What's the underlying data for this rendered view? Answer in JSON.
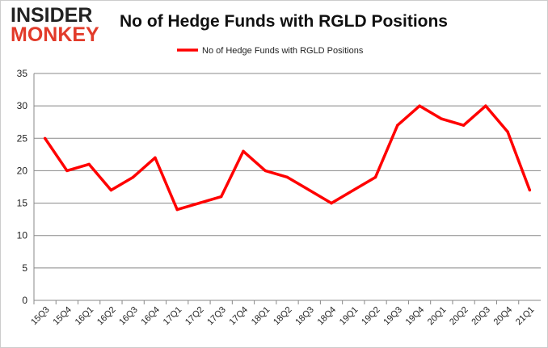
{
  "logo": {
    "line1": "INSIDER",
    "line2": "MONKEY"
  },
  "chart_data": {
    "type": "line",
    "title": "No of Hedge Funds with RGLD Positions",
    "categories": [
      "15Q3",
      "15Q4",
      "16Q1",
      "16Q2",
      "16Q3",
      "16Q4",
      "17Q1",
      "17Q2",
      "17Q3",
      "17Q4",
      "18Q1",
      "18Q2",
      "18Q3",
      "18Q4",
      "19Q1",
      "19Q2",
      "19Q3",
      "19Q4",
      "20Q1",
      "20Q2",
      "20Q3",
      "20Q4",
      "21Q1"
    ],
    "series": [
      {
        "name": "No of Hedge Funds with RGLD Positions",
        "color": "#ff0000",
        "values": [
          25,
          20,
          21,
          17,
          19,
          22,
          14,
          15,
          16,
          23,
          20,
          19,
          17,
          15,
          17,
          19,
          27,
          30,
          28,
          27,
          30,
          26,
          17
        ]
      }
    ],
    "ylim": [
      0,
      35
    ],
    "yticks": [
      0,
      5,
      10,
      15,
      20,
      25,
      30,
      35
    ],
    "grid": true,
    "legend": "top-center",
    "xlabel": "",
    "ylabel": ""
  }
}
